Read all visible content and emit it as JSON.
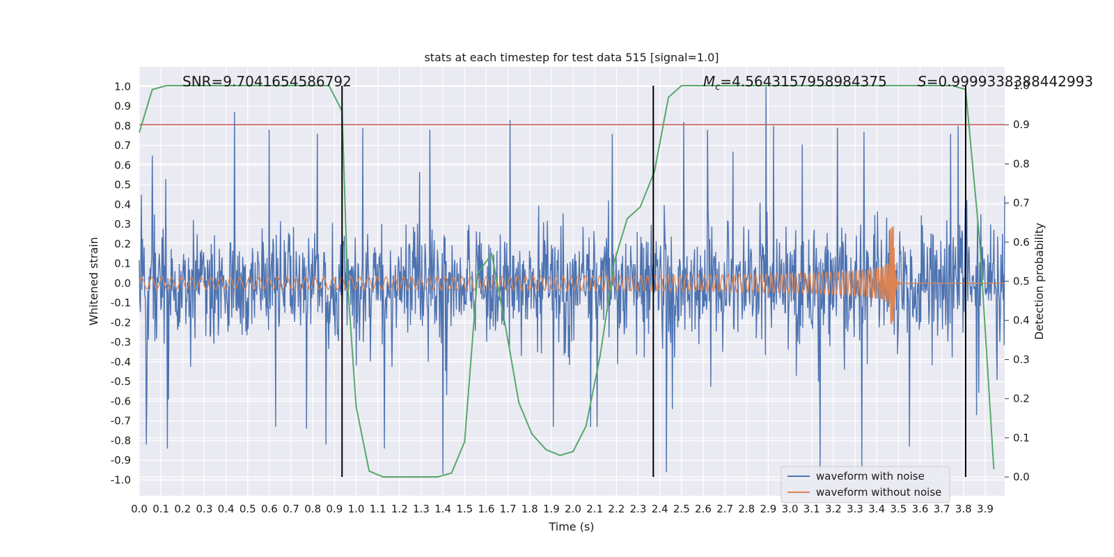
{
  "chart_data": {
    "type": "line",
    "title": "stats at each timestep for test data 515 [signal=1.0]",
    "xlabel": "Time (s)",
    "ylabel": "Whitened strain",
    "y2label": "Detection probability",
    "xlim": [
      0.0,
      3.99
    ],
    "ylim": [
      -1.08,
      1.1
    ],
    "y2lim": [
      -0.048,
      1.048
    ],
    "xticks": [
      "0.0",
      "0.1",
      "0.2",
      "0.3",
      "0.4",
      "0.5",
      "0.6",
      "0.7",
      "0.8",
      "0.9",
      "1.0",
      "1.1",
      "1.2",
      "1.3",
      "1.4",
      "1.5",
      "1.6",
      "1.7",
      "1.8",
      "1.9",
      "2.0",
      "2.1",
      "2.2",
      "2.3",
      "2.4",
      "2.5",
      "2.6",
      "2.7",
      "2.8",
      "2.9",
      "3.0",
      "3.1",
      "3.2",
      "3.3",
      "3.4",
      "3.5",
      "3.6",
      "3.7",
      "3.8",
      "3.9"
    ],
    "yticks": [
      "1.0",
      "0.9",
      "0.8",
      "0.7",
      "0.6",
      "0.5",
      "0.4",
      "0.3",
      "0.2",
      "0.1",
      "0.0",
      "-0.1",
      "-0.2",
      "-0.3",
      "-0.4",
      "-0.5",
      "-0.6",
      "-0.7",
      "-0.8",
      "-0.9",
      "-1.0"
    ],
    "y2ticks": [
      "1.0",
      "0.9",
      "0.8",
      "0.7",
      "0.6",
      "0.5",
      "0.4",
      "0.3",
      "0.2",
      "0.1",
      "0.0"
    ],
    "annotations": {
      "snr": "SNR=9.7041654586792",
      "mc": "=4.5643157958984375",
      "mc_symbol": "M",
      "mc_sub": "c",
      "s": "=0.9999338388442993",
      "s_symbol": "S"
    },
    "threshold": {
      "value": 0.9,
      "axis": "y2",
      "color": "#c44e52"
    },
    "vlines": [
      0.935,
      2.37,
      3.81
    ],
    "series": [
      {
        "name": "waveform with noise",
        "color": "#4c72b0",
        "kind": "noise",
        "peaks_pos": [
          [
            0.44,
            0.87
          ],
          [
            0.06,
            0.65
          ],
          [
            0.13,
            0.62
          ],
          [
            0.6,
            0.78
          ],
          [
            1.71,
            0.83
          ],
          [
            2.51,
            0.82
          ],
          [
            2.89,
            1.0
          ],
          [
            2.18,
            0.76
          ],
          [
            1.34,
            0.78
          ],
          [
            3.74,
            0.76
          ],
          [
            3.22,
            0.79
          ],
          [
            0.82,
            0.76
          ],
          [
            1.03,
            0.79
          ],
          [
            2.62,
            0.78
          ],
          [
            3.34,
            0.77
          ],
          [
            3.86,
            0.67
          ]
        ],
        "peaks_neg": [
          [
            0.13,
            -0.84
          ],
          [
            1.4,
            -0.97
          ],
          [
            2.43,
            -0.96
          ],
          [
            3.14,
            -0.95
          ],
          [
            3.33,
            -0.93
          ],
          [
            1.13,
            -0.84
          ],
          [
            0.77,
            -0.74
          ],
          [
            0.63,
            -0.73
          ],
          [
            1.91,
            -0.73
          ],
          [
            2.11,
            -0.73
          ],
          [
            3.55,
            -0.83
          ],
          [
            3.86,
            -0.67
          ]
        ]
      },
      {
        "name": "waveform without noise",
        "color": "#dd8452",
        "kind": "chirp",
        "start_freq": 21.5,
        "merger_time": 3.48,
        "start_amplitude": 0.03,
        "merger_amplitude_pos": 0.29,
        "merger_amplitude_neg": -0.22
      },
      {
        "name": "Detection probability",
        "color": "#55a868",
        "axis": "y2",
        "x": [
          0.0,
          0.06,
          0.125,
          0.3,
          0.5,
          0.7,
          0.875,
          0.935,
          0.96,
          1.0,
          1.06,
          1.125,
          1.2,
          1.3,
          1.375,
          1.44,
          1.5,
          1.56,
          1.625,
          1.69,
          1.75,
          1.81,
          1.875,
          1.94,
          2.0,
          2.06,
          2.125,
          2.19,
          2.25,
          2.31,
          2.375,
          2.44,
          2.5,
          2.6,
          2.8,
          3.0,
          3.2,
          3.4,
          3.6,
          3.75,
          3.81,
          3.875,
          3.94
        ],
        "y": [
          0.88,
          0.99,
          1.0,
          1.0,
          1.0,
          1.0,
          1.0,
          0.935,
          0.5,
          0.18,
          0.015,
          0.0,
          0.0,
          0.0,
          0.0,
          0.01,
          0.09,
          0.52,
          0.57,
          0.38,
          0.19,
          0.11,
          0.07,
          0.055,
          0.065,
          0.13,
          0.31,
          0.55,
          0.66,
          0.69,
          0.78,
          0.97,
          1.0,
          1.0,
          1.0,
          1.0,
          1.0,
          1.0,
          1.0,
          1.0,
          0.99,
          0.6,
          0.02
        ]
      }
    ],
    "legend": {
      "position": "lower-right",
      "entries": [
        "waveform with noise",
        "waveform without noise"
      ]
    }
  }
}
